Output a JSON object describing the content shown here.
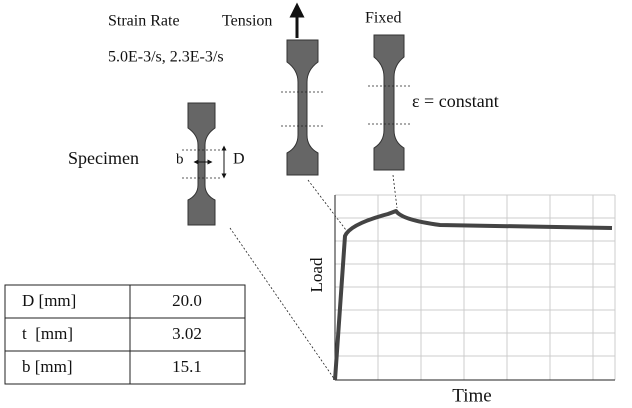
{
  "labels": {
    "strain_rate": "Strain Rate",
    "rates": "5.0E-3/s, 2.3E-3/s",
    "tension": "Tension",
    "fixed": "Fixed",
    "constant": "ε = constant",
    "specimen": "Specimen",
    "b": "b",
    "D": "D"
  },
  "chart": {
    "y_label": "Load",
    "x_label": "Time"
  },
  "table": {
    "rows": [
      [
        "D [mm]",
        "20.0"
      ],
      [
        "t  [mm]",
        "3.02"
      ],
      [
        "b [mm]",
        "15.1"
      ]
    ]
  }
}
